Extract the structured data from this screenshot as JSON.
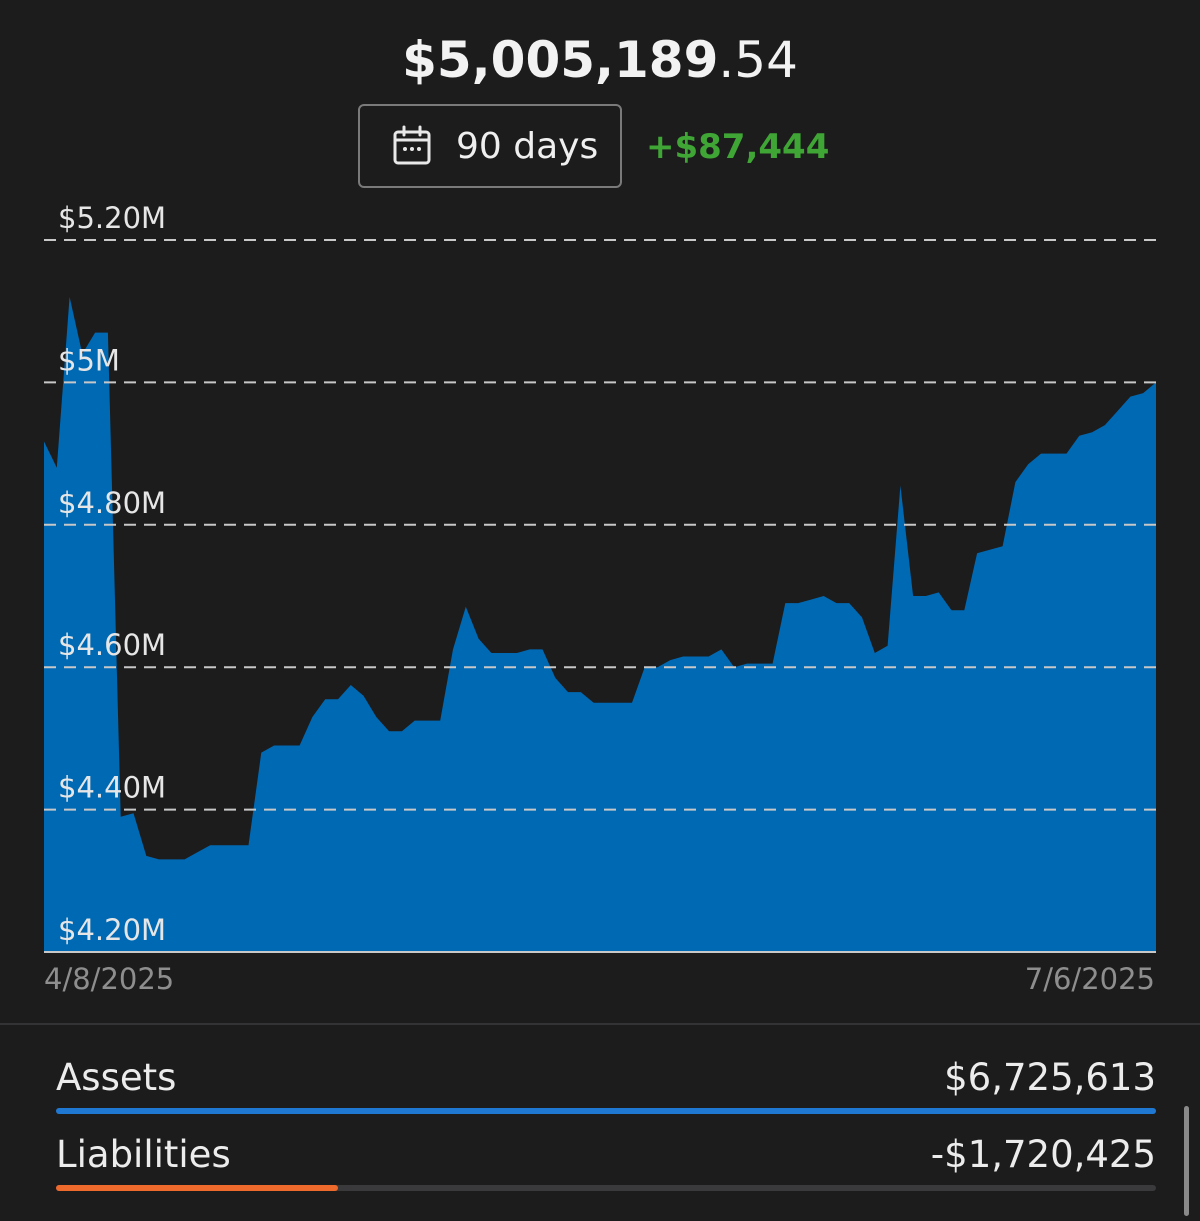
{
  "header": {
    "total_whole": "$5,005,189",
    "total_cents": ".54",
    "range_label": "90 days",
    "range_icon": "calendar-icon",
    "change": "+$87,444"
  },
  "colors": {
    "background": "#1c1c1d",
    "area_fill": "#0069b4",
    "positive": "#3fa535",
    "assets_bar": "#1f78d1",
    "liabilities_bar": "#ee6a2c"
  },
  "chart_data": {
    "type": "area",
    "x_start_label": "4/8/2025",
    "x_end_label": "7/6/2025",
    "ylim": [
      4200000,
      5200000
    ],
    "grid": true,
    "y_ticks": [
      {
        "value": 5200000,
        "label": "$5.20M"
      },
      {
        "value": 5000000,
        "label": "$5M"
      },
      {
        "value": 4800000,
        "label": "$4.80M"
      },
      {
        "value": 4600000,
        "label": "$4.60M"
      },
      {
        "value": 4400000,
        "label": "$4.40M"
      },
      {
        "value": 4200000,
        "label": "$4.20M"
      }
    ],
    "values": [
      4917000,
      4880000,
      5120000,
      5040000,
      5070000,
      5070000,
      4390000,
      4395000,
      4335000,
      4330000,
      4330000,
      4330000,
      4340000,
      4350000,
      4350000,
      4350000,
      4350000,
      4480000,
      4490000,
      4490000,
      4490000,
      4530000,
      4555000,
      4555000,
      4575000,
      4560000,
      4530000,
      4510000,
      4510000,
      4525000,
      4525000,
      4525000,
      4625000,
      4685000,
      4640000,
      4620000,
      4620000,
      4620000,
      4625000,
      4625000,
      4585000,
      4565000,
      4565000,
      4550000,
      4550000,
      4550000,
      4550000,
      4600000,
      4600000,
      4610000,
      4615000,
      4615000,
      4615000,
      4625000,
      4600000,
      4605000,
      4605000,
      4605000,
      4690000,
      4690000,
      4695000,
      4700000,
      4690000,
      4690000,
      4670000,
      4620000,
      4630000,
      4855000,
      4700000,
      4700000,
      4705000,
      4680000,
      4680000,
      4760000,
      4765000,
      4770000,
      4860000,
      4885000,
      4900000,
      4900000,
      4900000,
      4925000,
      4930000,
      4940000,
      4960000,
      4980000,
      4985000,
      5000000
    ]
  },
  "summary": {
    "assets_label": "Assets",
    "assets_value": "$6,725,613",
    "assets_fraction": 1.0,
    "liabilities_label": "Liabilities",
    "liabilities_value": "-$1,720,425",
    "liabilities_fraction": 0.256
  }
}
